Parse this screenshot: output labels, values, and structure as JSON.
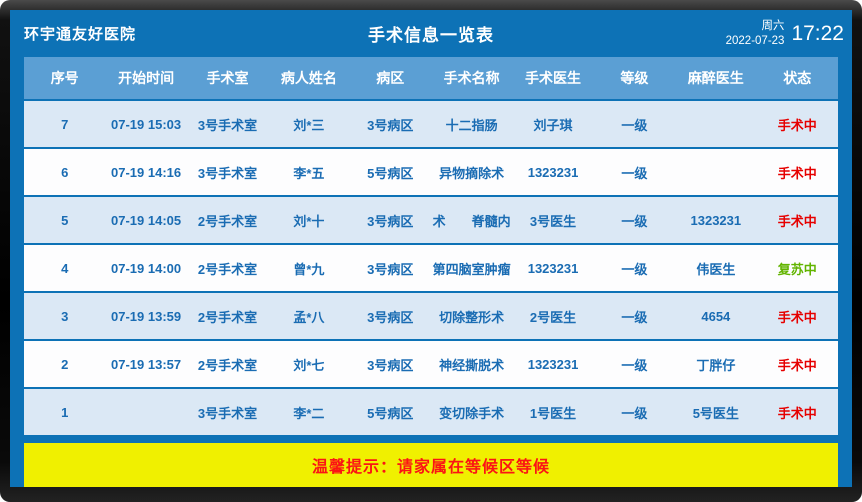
{
  "screen": {
    "hospital_name": "环宇通友好医院",
    "title": "手术信息一览表",
    "weekday": "周六",
    "date": "2022-07-23",
    "time": "17:22",
    "notice": "温馨提示：请家属在等候区等候"
  },
  "colors": {
    "background_blue": "#0d72b6",
    "table_header_blue": "#5b9fd4",
    "row_odd": "#dbe8f5",
    "row_even": "#fdfdfe",
    "cell_text_blue": "#1a6cb3",
    "status_red": "#e60000",
    "status_green": "#62b400",
    "notice_bg": "#f0f000",
    "notice_text": "#fb1414"
  },
  "table": {
    "columns": [
      "序号",
      "开始时间",
      "手术室",
      "病人姓名",
      "病区",
      "手术名称",
      "手术医生",
      "等级",
      "麻醉医生",
      "状态"
    ],
    "column_keys": [
      "no",
      "start_time",
      "room",
      "patient",
      "ward",
      "surgery",
      "surgeon",
      "level",
      "anesthetist",
      "status"
    ],
    "rows": [
      {
        "no": "1",
        "start_time": "",
        "room": "3号手术室",
        "patient": "李*二",
        "ward": "5号病区",
        "surgery": "变切除手术",
        "surgeon": "1号医生",
        "level": "一级",
        "anesthetist": "5号医生",
        "status": "手术中",
        "status_color": "red"
      },
      {
        "no": "2",
        "start_time": "07-19 13:57",
        "room": "2号手术室",
        "patient": "刘*七",
        "ward": "3号病区",
        "surgery": "神经撕脱术",
        "surgeon": "1323231",
        "level": "一级",
        "anesthetist": "丁胖仔",
        "status": "手术中",
        "status_color": "red"
      },
      {
        "no": "3",
        "start_time": "07-19 13:59",
        "room": "2号手术室",
        "patient": "孟*八",
        "ward": "3号病区",
        "surgery": "切除整形术",
        "surgeon": "2号医生",
        "level": "一级",
        "anesthetist": "4654",
        "status": "手术中",
        "status_color": "red"
      },
      {
        "no": "4",
        "start_time": "07-19 14:00",
        "room": "2号手术室",
        "patient": "曾*九",
        "ward": "3号病区",
        "surgery": "第四脑室肿瘤",
        "surgeon": "1323231",
        "level": "一级",
        "anesthetist": "伟医生",
        "status": "复苏中",
        "status_color": "green"
      },
      {
        "no": "5",
        "start_time": "07-19 14:05",
        "room": "2号手术室",
        "patient": "刘*十",
        "ward": "3号病区",
        "surgery": "术　　脊髓内",
        "surgeon": "3号医生",
        "level": "一级",
        "anesthetist": "1323231",
        "status": "手术中",
        "status_color": "red"
      },
      {
        "no": "6",
        "start_time": "07-19 14:16",
        "room": "3号手术室",
        "patient": "李*五",
        "ward": "5号病区",
        "surgery": "异物摘除术",
        "surgeon": "1323231",
        "level": "一级",
        "anesthetist": "",
        "status": "手术中",
        "status_color": "red"
      },
      {
        "no": "7",
        "start_time": "07-19 15:03",
        "room": "3号手术室",
        "patient": "刘*三",
        "ward": "3号病区",
        "surgery": "十二指肠",
        "surgeon": "刘子琪",
        "level": "一级",
        "anesthetist": "",
        "status": "手术中",
        "status_color": "red"
      }
    ]
  }
}
